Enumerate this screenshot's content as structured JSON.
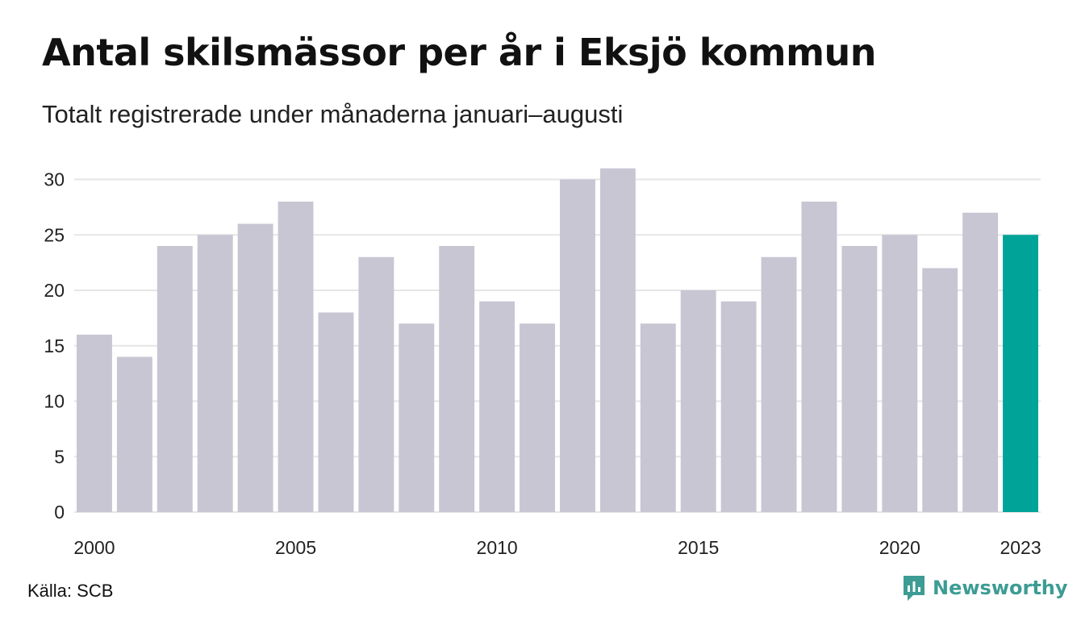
{
  "title": "Antal skilsmässor per år i Eksjö kommun",
  "subtitle": "Totalt registrerade under månaderna januari–augusti",
  "source": "Källa: SCB",
  "brand": {
    "name": "Newsworthy",
    "icon": "newsworthy-logo-icon",
    "color": "#3d9c93"
  },
  "colors": {
    "bar": "#c8c6d3",
    "highlight": "#00a398",
    "grid": "#e6e6e6"
  },
  "chart_data": {
    "type": "bar",
    "title": "Antal skilsmässor per år i Eksjö kommun",
    "subtitle": "Totalt registrerade under månaderna januari–augusti",
    "xlabel": "",
    "ylabel": "",
    "ylim": [
      0,
      31
    ],
    "yticks": [
      0,
      5,
      10,
      15,
      20,
      25,
      30
    ],
    "x_tick_labels": [
      "2000",
      "2005",
      "2010",
      "2015",
      "2020",
      "2023"
    ],
    "grid": true,
    "highlight_category": "2023",
    "categories": [
      "2000",
      "2001",
      "2002",
      "2003",
      "2004",
      "2005",
      "2006",
      "2007",
      "2008",
      "2009",
      "2010",
      "2011",
      "2012",
      "2013",
      "2014",
      "2015",
      "2016",
      "2017",
      "2018",
      "2019",
      "2020",
      "2021",
      "2022",
      "2023"
    ],
    "values": [
      16,
      14,
      24,
      25,
      26,
      28,
      18,
      23,
      17,
      24,
      19,
      17,
      30,
      31,
      17,
      20,
      19,
      23,
      28,
      24,
      25,
      22,
      27,
      25
    ]
  }
}
